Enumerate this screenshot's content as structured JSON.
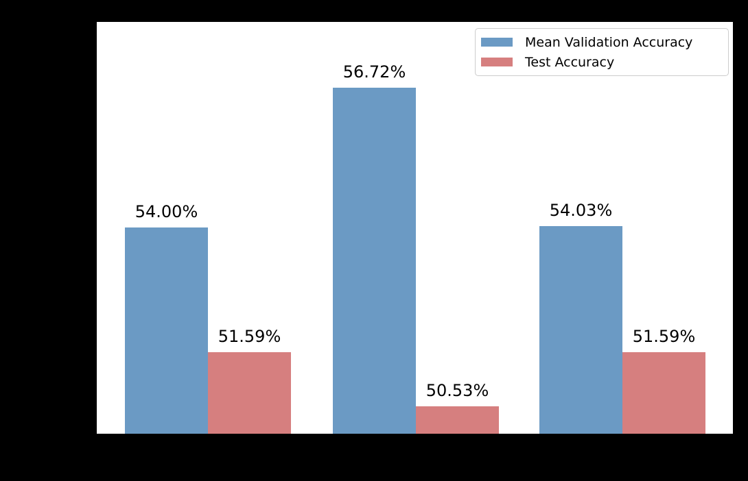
{
  "figure": {
    "background": "#000000",
    "plot_background": "#ffffff",
    "text_color": "#000000"
  },
  "chart_data": {
    "type": "bar",
    "title": "",
    "xlabel": "",
    "ylabel": "",
    "categories": [
      "",
      "",
      ""
    ],
    "series": [
      {
        "name": "Mean Validation Accuracy",
        "color": "#6b9ac4",
        "values": [
          54.0,
          56.72,
          54.03
        ],
        "value_labels": [
          "54.00%",
          "56.72%",
          "54.03%"
        ]
      },
      {
        "name": "Test Accuracy",
        "color": "#d67f7f",
        "values": [
          51.59,
          50.53,
          51.59
        ],
        "value_labels": [
          "51.59%",
          "50.53%",
          "51.59%"
        ]
      }
    ],
    "ylim": [
      50,
      58
    ],
    "grid": false,
    "legend": {
      "position": "upper-right",
      "background": "#ffffff",
      "border_color": "#cccccc"
    }
  }
}
